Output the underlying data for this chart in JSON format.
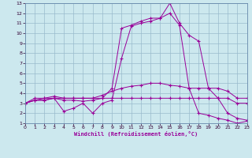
{
  "xlabel": "Windchill (Refroidissement éolien,°C)",
  "bg_color": "#cce8ee",
  "line_color": "#990099",
  "grid_color": "#99bbcc",
  "x_values": [
    0,
    1,
    2,
    3,
    4,
    5,
    6,
    7,
    8,
    9,
    10,
    11,
    12,
    13,
    14,
    15,
    16,
    17,
    18,
    19,
    20,
    21,
    22,
    23
  ],
  "series": [
    [
      3.0,
      3.3,
      3.3,
      3.5,
      3.3,
      3.3,
      3.2,
      3.3,
      3.5,
      4.5,
      10.5,
      10.8,
      11.2,
      11.5,
      11.5,
      13.0,
      11.0,
      9.8,
      9.2,
      4.5,
      3.5,
      2.0,
      1.5,
      1.3
    ],
    [
      3.0,
      3.3,
      3.3,
      3.5,
      2.2,
      2.5,
      3.0,
      2.0,
      3.0,
      3.3,
      7.5,
      10.7,
      11.0,
      11.2,
      11.5,
      12.0,
      10.8,
      4.5,
      2.0,
      1.8,
      1.5,
      1.3,
      1.0,
      1.2
    ],
    [
      3.0,
      3.3,
      3.5,
      3.7,
      3.5,
      3.5,
      3.5,
      3.5,
      3.8,
      4.2,
      4.5,
      4.7,
      4.8,
      5.0,
      5.0,
      4.8,
      4.7,
      4.5,
      4.5,
      4.5,
      4.5,
      4.2,
      3.5,
      3.5
    ],
    [
      3.0,
      3.5,
      3.5,
      3.5,
      3.5,
      3.5,
      3.5,
      3.5,
      3.5,
      3.5,
      3.5,
      3.5,
      3.5,
      3.5,
      3.5,
      3.5,
      3.5,
      3.5,
      3.5,
      3.5,
      3.5,
      3.5,
      3.0,
      3.0
    ]
  ],
  "xlim": [
    0,
    23
  ],
  "ylim": [
    1,
    13
  ],
  "xticks": [
    0,
    1,
    2,
    3,
    4,
    5,
    6,
    7,
    8,
    9,
    10,
    11,
    12,
    13,
    14,
    15,
    16,
    17,
    18,
    19,
    20,
    21,
    22,
    23
  ],
  "yticks": [
    1,
    2,
    3,
    4,
    5,
    6,
    7,
    8,
    9,
    10,
    11,
    12,
    13
  ]
}
